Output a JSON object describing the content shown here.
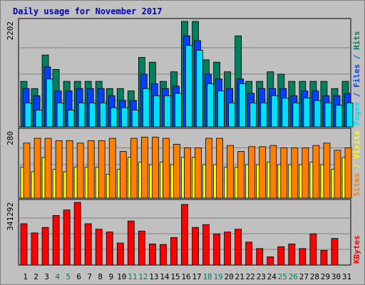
{
  "chart_data": {
    "type": "bar",
    "title": "Daily usage for November 2017",
    "categories": [
      "1",
      "2",
      "3",
      "4",
      "5",
      "6",
      "7",
      "8",
      "9",
      "10",
      "11",
      "12",
      "13",
      "14",
      "15",
      "16",
      "17",
      "18",
      "19",
      "20",
      "21",
      "22",
      "23",
      "24",
      "25",
      "26",
      "27",
      "28",
      "29",
      "30",
      "31"
    ],
    "weekend_days": [
      "4",
      "5",
      "11",
      "12",
      "18",
      "19",
      "25",
      "26"
    ],
    "panels": [
      {
        "id": "hits-files-pages",
        "ymax_label": "2202",
        "ymax": 2202,
        "side_labels": [
          {
            "text": "Pages",
            "color": "#00e0ff"
          },
          {
            "text": " / ",
            "color": "#0040ff"
          },
          {
            "text": "Files",
            "color": "#0040ff"
          },
          {
            "text": " / ",
            "color": "#0040ff"
          },
          {
            "text": "Hits",
            "color": "#00805c"
          }
        ],
        "series": [
          {
            "name": "Hits",
            "color": "#00805c",
            "values": [
              950,
              800,
              1500,
              1200,
              950,
              950,
              950,
              950,
              800,
              800,
              750,
              1450,
              1350,
              950,
              1150,
              2202,
              2202,
              1400,
              1350,
              1150,
              1900,
              950,
              950,
              1150,
              1100,
              950,
              950,
              950,
              950,
              800,
              950
            ]
          },
          {
            "name": "Files",
            "color": "#0040ff",
            "values": [
              800,
              650,
              1250,
              750,
              750,
              800,
              800,
              800,
              650,
              550,
              550,
              1100,
              900,
              800,
              850,
              1900,
              1800,
              1100,
              1000,
              800,
              1000,
              700,
              800,
              800,
              800,
              650,
              750,
              750,
              650,
              650,
              700
            ]
          },
          {
            "name": "Pages",
            "color": "#00e0ff",
            "values": [
              500,
              350,
              1000,
              500,
              350,
              500,
              500,
              500,
              400,
              400,
              350,
              800,
              650,
              650,
              700,
              1700,
              1600,
              900,
              750,
              500,
              900,
              500,
              500,
              650,
              600,
              500,
              600,
              550,
              500,
              450,
              500
            ]
          }
        ]
      },
      {
        "id": "visits-sites",
        "ymax_label": "280",
        "ymax": 280,
        "side_labels": [
          {
            "text": "Sites",
            "color": "#ff8000"
          },
          {
            "text": " / ",
            "color": "#ffff00"
          },
          {
            "text": "Visits",
            "color": "#ffff00"
          }
        ],
        "series": [
          {
            "name": "Visits",
            "color": "#ffff00",
            "values": [
              130,
              110,
              170,
              120,
              110,
              130,
              130,
              130,
              100,
              120,
              170,
              150,
              140,
              150,
              140,
              170,
              170,
              140,
              140,
              130,
              130,
              140,
              140,
              150,
              140,
              140,
              140,
              150,
              140,
              120,
              170
            ]
          },
          {
            "name": "Sites",
            "color": "#ff8000",
            "values": [
              230,
              250,
              250,
              240,
              240,
              230,
              240,
              240,
              250,
              195,
              250,
              255,
              255,
              250,
              225,
              210,
              210,
              250,
              250,
              220,
              195,
              215,
              215,
              220,
              210,
              210,
              210,
              220,
              230,
              200,
              210
            ]
          }
        ]
      },
      {
        "id": "kbytes",
        "ymax_label": "341292",
        "ymax": 341292,
        "side_labels": [
          {
            "text": "KBytes",
            "color": "#ff0000"
          }
        ],
        "series": [
          {
            "name": "KBytes",
            "color": "#ff0000",
            "values": [
              225000,
              175000,
              205000,
              270000,
              300000,
              341292,
              225000,
              195000,
              180000,
              120000,
              240000,
              185000,
              115000,
              112000,
              150000,
              330000,
              205000,
              220000,
              170000,
              180000,
              195000,
              125000,
              90000,
              45000,
              100000,
              115000,
              90000,
              170000,
              80000,
              145000,
              0
            ]
          }
        ]
      }
    ]
  }
}
